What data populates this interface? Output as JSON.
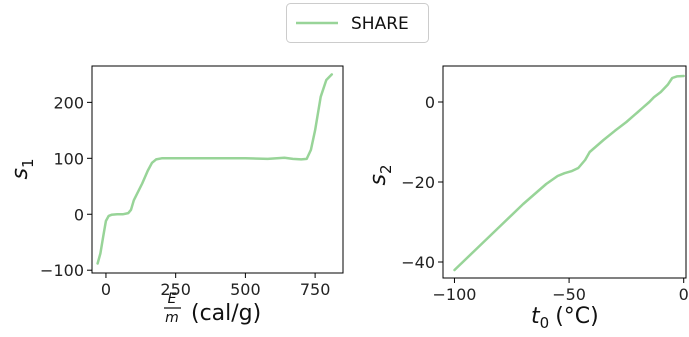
{
  "legend": {
    "entries": [
      "SHARE"
    ],
    "placement": "top-center"
  },
  "colors": {
    "line": "#98d498",
    "axis": "#000000",
    "legend_border": "#cccccc"
  },
  "chart_data": [
    {
      "type": "line",
      "title": "",
      "xlabel": "(cal/g)",
      "xlabel_math": {
        "numerator": "E",
        "denominator": "m"
      },
      "ylabel": "s",
      "ylabel_subscript": "1",
      "xlim": [
        -50,
        850
      ],
      "ylim": [
        -105,
        265
      ],
      "xticks": [
        0,
        250,
        500,
        750
      ],
      "yticks": [
        -100,
        0,
        100,
        200
      ],
      "series": [
        {
          "name": "SHARE",
          "x": [
            -30,
            -20,
            -10,
            0,
            10,
            20,
            40,
            60,
            80,
            90,
            100,
            110,
            130,
            150,
            165,
            180,
            200,
            250,
            300,
            400,
            500,
            580,
            640,
            670,
            700,
            720,
            735,
            750,
            770,
            790,
            810
          ],
          "y": [
            -88,
            -70,
            -40,
            -12,
            -3,
            -1,
            0,
            0,
            2,
            8,
            25,
            35,
            55,
            78,
            92,
            98,
            100,
            100,
            100,
            100,
            100,
            99,
            101,
            99,
            98,
            99,
            115,
            150,
            210,
            240,
            250
          ]
        }
      ]
    },
    {
      "type": "line",
      "title": "",
      "xlabel": "(°C)",
      "xlabel_math": {
        "symbol": "t",
        "subscript": "0"
      },
      "ylabel": "s",
      "ylabel_subscript": "2",
      "xlim": [
        -105,
        1
      ],
      "ylim": [
        -44,
        9
      ],
      "xticks": [
        -100,
        -50,
        0
      ],
      "yticks": [
        -40,
        -20,
        0
      ],
      "series": [
        {
          "name": "SHARE",
          "x": [
            -100,
            -90,
            -80,
            -70,
            -60,
            -55,
            -52,
            -49,
            -46,
            -43,
            -41,
            -40,
            -38,
            -35,
            -30,
            -25,
            -20,
            -18,
            -15,
            -13,
            -10,
            -7,
            -5,
            -3,
            0
          ],
          "y": [
            -42,
            -36.5,
            -31,
            -25.5,
            -20.5,
            -18.5,
            -17.8,
            -17.3,
            -16.5,
            -14.5,
            -12.5,
            -12,
            -11,
            -9.5,
            -7.2,
            -5,
            -2.5,
            -1.5,
            0,
            1.2,
            2.5,
            4.3,
            6,
            6.4,
            6.5
          ]
        }
      ]
    }
  ]
}
